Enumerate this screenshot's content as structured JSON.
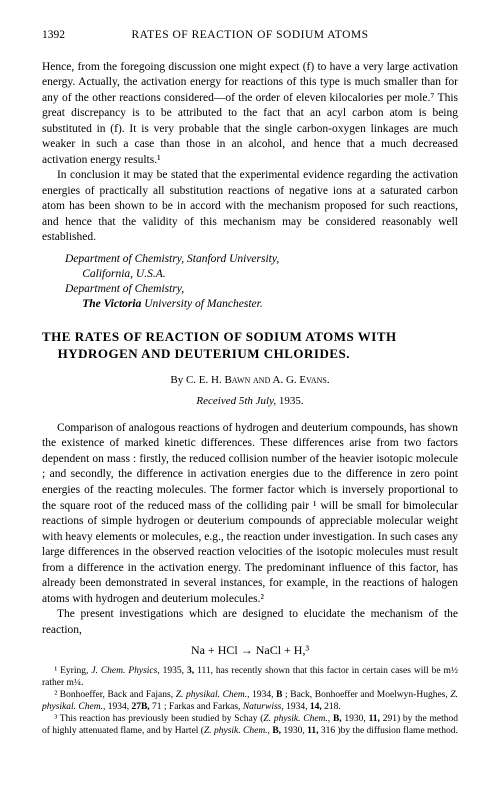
{
  "header": {
    "page_number": "1392",
    "running_head": "RATES OF REACTION OF SODIUM ATOMS"
  },
  "para1": "Hence, from the foregoing discussion one might expect (f) to have a very large activation energy. Actually, the activation energy for reactions of this type is much smaller than for any of the other reactions considered—of the order of eleven kilocalories per mole.⁷ This great discrepancy is to be attributed to the fact that an acyl carbon atom is being substituted in (f). It is very probable that the single carbon-oxygen linkages are much weaker in such a case than those in an alcohol, and hence that a much decreased activation energy results.¹",
  "para2": "In conclusion it may be stated that the experimental evidence regarding the activation energies of practically all substitution reactions of negative ions at a saturated carbon atom has been shown to be in accord with the mechanism proposed for such reactions, and hence that the validity of this mechanism may be considered reasonably well established.",
  "affiliation": {
    "line1_ital": "Department of Chemistry, Stanford University,",
    "line2_ital": "California, U.S.A.",
    "line3_ital": "Department of Chemistry,",
    "line4_bold_ital": "The Victoria",
    "line4_rest_ital": " University of Manchester."
  },
  "article": {
    "title": "THE RATES OF REACTION OF SODIUM ATOMS WITH HYDROGEN AND DEUTERIUM CHLORIDES.",
    "by_prefix": "By ",
    "authors": "C. E. H. Bawn and A. G. Evans.",
    "received_ital": "Received 5th July,",
    "received_year": " 1935."
  },
  "para3": "Comparison of analogous reactions of hydrogen and deuterium compounds, has shown the existence of marked kinetic differences. These differences arise from two factors dependent on mass : firstly, the reduced collision number of the heavier isotopic molecule ; and secondly, the difference in activation energies due to the difference in zero point energies of the reacting molecules. The former factor which is inversely proportional to the square root of the reduced mass of the colliding pair ¹ will be small for bimolecular reactions of simple hydrogen or deuterium compounds of appreciable molecular weight with heavy elements or molecules, e.g., the reaction under investigation. In such cases any large differences in the observed reaction velocities of the isotopic molecules must result from a difference in the activation energy. The predominant influence of this factor, has already been demonstrated in several instances, for example, in the reactions of halogen atoms with hydrogen and deuterium molecules.²",
  "para4": "The present investigations which are designed to elucidate the mechanism of the reaction,",
  "equation": "Na + HCl → NaCl + H,³",
  "footnotes": {
    "fn1a": "¹ Eyring, ",
    "fn1b_ital": "J. Chem. Physics,",
    "fn1c": " 1935, ",
    "fn1d_bold": "3,",
    "fn1e": " 111, has recently shown that this factor in certain cases will be m½ rather m¼.",
    "fn2a": "² Bonhoeffer, Back and Fajans, ",
    "fn2b_ital": "Z. physikal. Chem.,",
    "fn2c": " 1934, ",
    "fn2d_bold": "B",
    "fn2e": " ; Back, Bonhoeffer and Moelwyn-Hughes, ",
    "fn2f_ital": "Z. physikal. Chem.,",
    "fn2g": " 1934, ",
    "fn2h_bold": "27B,",
    "fn2i": " 71 ; Farkas and Farkas, ",
    "fn2j_ital": "Naturwiss,",
    "fn2k": " 1934, ",
    "fn2l_bold": "14,",
    "fn2m": " 218.",
    "fn3a": "³ This reaction has previously been studied by Schay (",
    "fn3b_ital": "Z. physik. Chem.,",
    "fn3c": " ",
    "fn3d_bold": "B,",
    "fn3e": " 1930, ",
    "fn3f_bold": "11,",
    "fn3g": " 291) by the method of highly attenuated flame, and by Hartel (",
    "fn3h_ital": "Z. physik. Chem.,",
    "fn3i": " ",
    "fn3j_bold": "B,",
    "fn3k": " 1930, ",
    "fn3l_bold": "11,",
    "fn3m": " 316 )by the diffusion flame method."
  }
}
